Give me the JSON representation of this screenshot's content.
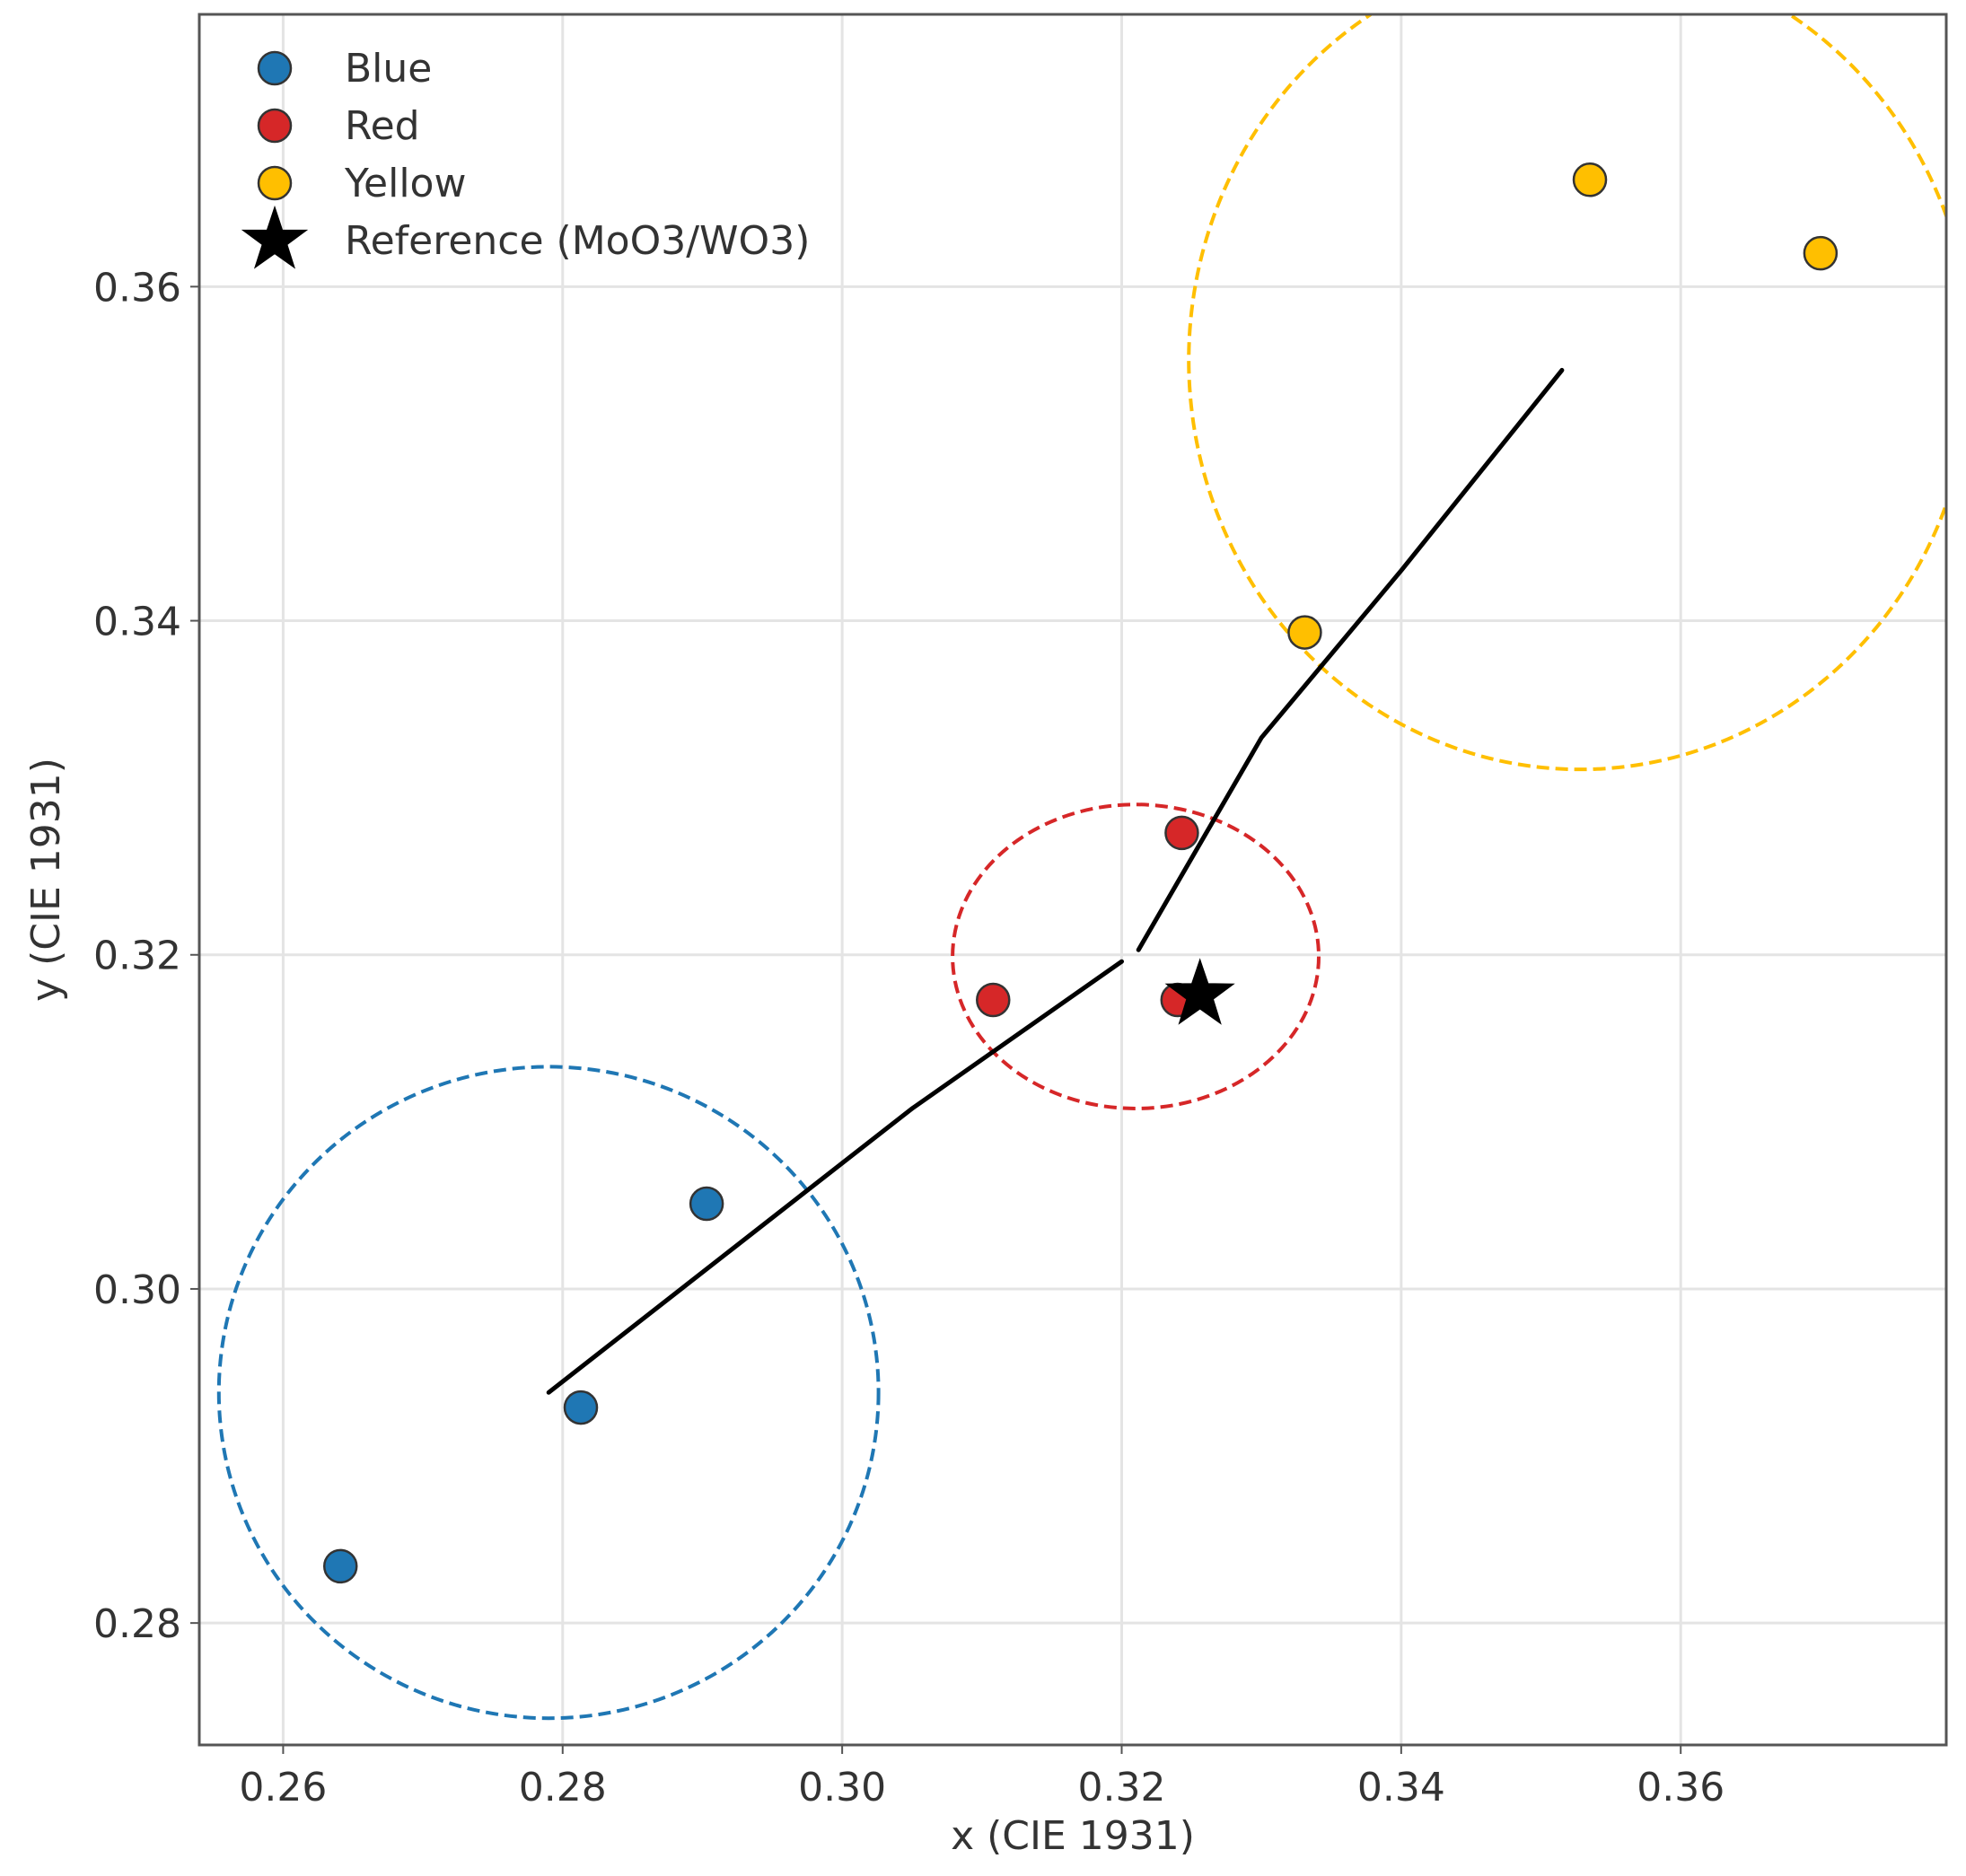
{
  "chart_data": {
    "type": "scatter",
    "title": "",
    "xlabel": "x (CIE 1931)",
    "ylabel": "y (CIE 1931)",
    "xlim": [
      0.254,
      0.379
    ],
    "ylim": [
      0.2727,
      0.3763
    ],
    "grid": true,
    "legend_position": "top-left",
    "x_ticks": [
      {
        "value": 0.26,
        "label": "0.26"
      },
      {
        "value": 0.28,
        "label": "0.28"
      },
      {
        "value": 0.3,
        "label": "0.30"
      },
      {
        "value": 0.32,
        "label": "0.32"
      },
      {
        "value": 0.34,
        "label": "0.34"
      },
      {
        "value": 0.36,
        "label": "0.36"
      }
    ],
    "y_ticks": [
      {
        "value": 0.28,
        "label": "0.28"
      },
      {
        "value": 0.3,
        "label": "0.30"
      },
      {
        "value": 0.32,
        "label": "0.32"
      },
      {
        "value": 0.34,
        "label": "0.34"
      },
      {
        "value": 0.36,
        "label": "0.36"
      }
    ],
    "series": [
      {
        "name": "Blue",
        "color": "#1f77b4",
        "marker": "circle",
        "points": [
          [
            0.2641,
            0.2834
          ],
          [
            0.2813,
            0.2929
          ],
          [
            0.2903,
            0.3051
          ]
        ]
      },
      {
        "name": "Red",
        "color": "#d62728",
        "marker": "circle",
        "points": [
          [
            0.3108,
            0.3173
          ],
          [
            0.3243,
            0.3273
          ],
          [
            0.324,
            0.3173
          ]
        ]
      },
      {
        "name": "Yellow",
        "color": "#ffbf00",
        "marker": "circle",
        "points": [
          [
            0.3331,
            0.3393
          ],
          [
            0.3535,
            0.3664
          ],
          [
            0.37,
            0.362
          ]
        ]
      },
      {
        "name": "Reference (MoO3/WO3)",
        "color": "#000000",
        "marker": "star",
        "points": [
          [
            0.3256,
            0.3176
          ]
        ]
      }
    ],
    "ellipses": [
      {
        "group": "Blue",
        "color": "#1f77b4",
        "center": [
          0.279,
          0.2938
        ],
        "radius_x": 0.0236,
        "radius_y": 0.0195
      },
      {
        "group": "Red",
        "color": "#d62728",
        "center": [
          0.321,
          0.3199
        ],
        "radius_x": 0.0131,
        "radius_y": 0.0091
      },
      {
        "group": "Yellow",
        "color": "#ffbf00",
        "center": [
          0.3528,
          0.3556
        ],
        "radius_x": 0.028,
        "radius_y": 0.0245
      }
    ],
    "trend_line": {
      "color": "#000000",
      "segments": [
        [
          [
            0.279,
            0.2938
          ],
          [
            0.292,
            0.3023
          ],
          [
            0.305,
            0.3108
          ],
          [
            0.32,
            0.3196
          ]
        ],
        [
          [
            0.3212,
            0.3203
          ],
          [
            0.33,
            0.333
          ],
          [
            0.34,
            0.343
          ],
          [
            0.3515,
            0.355
          ]
        ]
      ]
    }
  }
}
